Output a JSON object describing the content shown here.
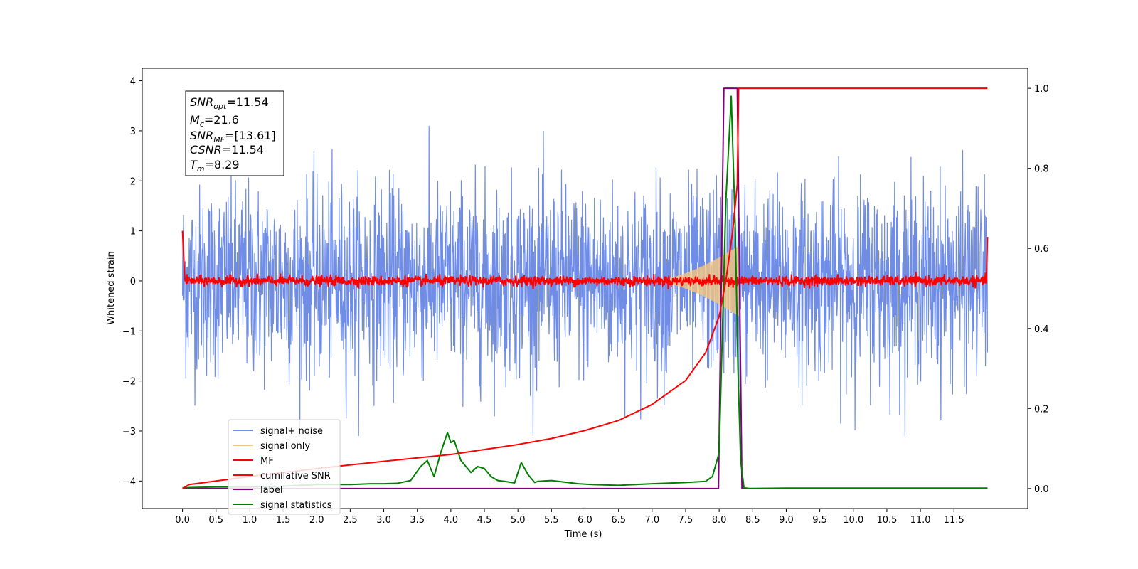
{
  "chart_data": {
    "type": "line",
    "xlabel": "Time (s)",
    "ylabel": "Whitened strain",
    "xlim": [
      -0.6,
      12.6
    ],
    "ylim": [
      -4.55,
      4.25
    ],
    "ylim_right": [
      -0.05,
      1.05
    ],
    "x_ticks": [
      "0.0",
      "0.5",
      "1.0",
      "1.5",
      "2.0",
      "2.5",
      "3.0",
      "3.5",
      "4.0",
      "4.5",
      "5.0",
      "5.5",
      "6.0",
      "6.5",
      "7.0",
      "7.5",
      "8.0",
      "8.5",
      "9.0",
      "9.5",
      "10.0",
      "10.5",
      "11.0",
      "11.5"
    ],
    "y_ticks_left": [
      "4",
      "3",
      "2",
      "1",
      "0",
      "−1",
      "−2",
      "−3",
      "−4"
    ],
    "y_ticks_right": [
      "1.0",
      "0.8",
      "0.6",
      "0.4",
      "0.2",
      "0.0"
    ],
    "annotation": {
      "lines": [
        {
          "var": "SNR",
          "sub": "opt",
          "value": "=11.54"
        },
        {
          "var": "M",
          "sub": "c",
          "value": "=21.6"
        },
        {
          "var": "SNR",
          "sub": "MF",
          "value": "=[13.61]"
        },
        {
          "var": "CSNR",
          "sub": "",
          "value": "=11.54"
        },
        {
          "var": "T",
          "sub": "m",
          "value": "=8.29"
        }
      ]
    },
    "legend": {
      "placement": "lower-left",
      "entries": [
        {
          "label": "signal+ noise",
          "color": "#6f8de6"
        },
        {
          "label": "signal only",
          "color": "#f5c77e"
        },
        {
          "label": "MF",
          "color": "#ff0000"
        },
        {
          "label": "cumilative SNR",
          "color": "#ff0000"
        },
        {
          "label": "label",
          "color": "#800080"
        },
        {
          "label": "signal statistics",
          "color": "#008000"
        }
      ]
    },
    "series": [
      {
        "name": "signal+ noise",
        "axis": "left",
        "color": "#6f8de6",
        "kind": "noise",
        "x_range": [
          0,
          12.0
        ],
        "amplitude_std": 0.95
      },
      {
        "name": "signal only",
        "axis": "left",
        "color": "#f5c77e",
        "kind": "chirp",
        "x_range": [
          7.0,
          8.29
        ],
        "peak_amplitude": 0.7
      },
      {
        "name": "MF",
        "axis": "left",
        "color": "#ff0000",
        "kind": "noise",
        "x_range": [
          0,
          12.0
        ],
        "amplitude_std": 0.05
      },
      {
        "name": "cumilative SNR",
        "axis": "right",
        "color": "#ff0000",
        "x": [
          0,
          0.1,
          1,
          2,
          3,
          4,
          5,
          5.5,
          6,
          6.5,
          7,
          7.5,
          7.8,
          8.0,
          8.1,
          8.2,
          8.27,
          8.29,
          12.0
        ],
        "y": [
          0.0,
          0.01,
          0.03,
          0.05,
          0.068,
          0.085,
          0.11,
          0.125,
          0.145,
          0.17,
          0.21,
          0.27,
          0.34,
          0.43,
          0.52,
          0.64,
          0.76,
          1.0,
          1.0
        ]
      },
      {
        "name": "label",
        "axis": "right",
        "color": "#800080",
        "x": [
          0,
          7.99,
          8.07,
          8.27,
          8.34,
          12.0
        ],
        "y": [
          0,
          0,
          1,
          1,
          0,
          0
        ]
      },
      {
        "name": "signal statistics",
        "axis": "right",
        "color": "#008000",
        "x": [
          0,
          0.5,
          1,
          1.5,
          2,
          2.5,
          2.8,
          3.0,
          3.2,
          3.4,
          3.55,
          3.65,
          3.75,
          3.85,
          3.95,
          4.0,
          4.05,
          4.15,
          4.3,
          4.4,
          4.5,
          4.6,
          4.7,
          4.8,
          4.95,
          5.05,
          5.15,
          5.25,
          5.3,
          5.5,
          5.7,
          5.9,
          6.1,
          6.5,
          7.0,
          7.5,
          7.8,
          7.9,
          8.0,
          8.1,
          8.18,
          8.24,
          8.28,
          8.32,
          8.37,
          8.45,
          9.0,
          12.0
        ],
        "y": [
          0.002,
          0.004,
          0.004,
          0.006,
          0.01,
          0.01,
          0.012,
          0.012,
          0.013,
          0.02,
          0.055,
          0.07,
          0.03,
          0.09,
          0.14,
          0.115,
          0.12,
          0.07,
          0.04,
          0.055,
          0.05,
          0.03,
          0.02,
          0.018,
          0.014,
          0.065,
          0.035,
          0.015,
          0.018,
          0.02,
          0.016,
          0.012,
          0.01,
          0.008,
          0.012,
          0.015,
          0.018,
          0.03,
          0.09,
          0.72,
          0.98,
          0.65,
          0.3,
          0.07,
          0.002,
          0.0,
          0.001,
          0.001
        ]
      }
    ]
  }
}
